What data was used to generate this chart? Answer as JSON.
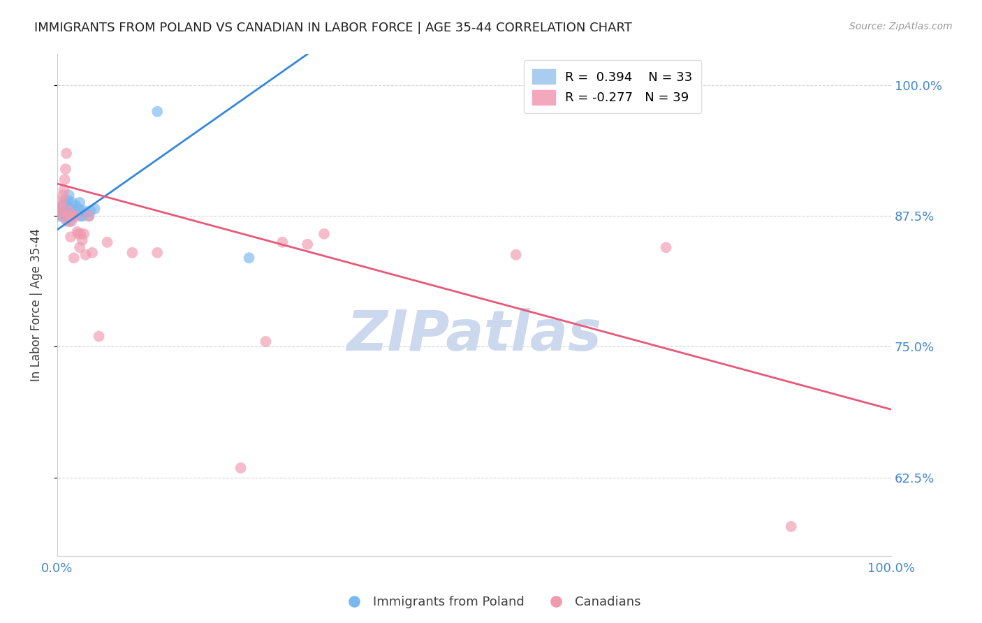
{
  "title": "IMMIGRANTS FROM POLAND VS CANADIAN IN LABOR FORCE | AGE 35-44 CORRELATION CHART",
  "source": "Source: ZipAtlas.com",
  "ylabel": "In Labor Force | Age 35-44",
  "xlim": [
    0.0,
    1.0
  ],
  "ylim": [
    0.55,
    1.03
  ],
  "yticks": [
    0.625,
    0.75,
    0.875,
    1.0
  ],
  "ytick_labels": [
    "62.5%",
    "75.0%",
    "87.5%",
    "100.0%"
  ],
  "xticks": [
    0.0,
    0.1,
    0.2,
    0.3,
    0.4,
    0.5,
    0.6,
    0.7,
    0.8,
    0.9,
    1.0
  ],
  "blue_R": 0.394,
  "blue_N": 33,
  "pink_R": -0.277,
  "pink_N": 39,
  "blue_color": "#7ab8f0",
  "pink_color": "#f09aaf",
  "line_blue_color": "#3388dd",
  "line_pink_color": "#e85878",
  "title_color": "#202020",
  "axis_color": "#4488cc",
  "blue_points_x": [
    0.003,
    0.004,
    0.005,
    0.005,
    0.006,
    0.007,
    0.008,
    0.008,
    0.009,
    0.01,
    0.011,
    0.012,
    0.013,
    0.014,
    0.015,
    0.016,
    0.017,
    0.018,
    0.02,
    0.021,
    0.022,
    0.025,
    0.026,
    0.027,
    0.028,
    0.03,
    0.032,
    0.035,
    0.038,
    0.04,
    0.045,
    0.12,
    0.23
  ],
  "blue_points_y": [
    0.875,
    0.878,
    0.88,
    0.883,
    0.876,
    0.879,
    0.882,
    0.886,
    0.889,
    0.872,
    0.875,
    0.885,
    0.89,
    0.895,
    0.87,
    0.875,
    0.882,
    0.888,
    0.875,
    0.88,
    0.885,
    0.878,
    0.882,
    0.888,
    0.875,
    0.875,
    0.88,
    0.878,
    0.875,
    0.88,
    0.882,
    0.975,
    0.835
  ],
  "pink_points_x": [
    0.003,
    0.004,
    0.005,
    0.006,
    0.007,
    0.008,
    0.009,
    0.01,
    0.011,
    0.012,
    0.013,
    0.014,
    0.015,
    0.016,
    0.017,
    0.018,
    0.02,
    0.022,
    0.024,
    0.025,
    0.027,
    0.028,
    0.03,
    0.032,
    0.034,
    0.038,
    0.042,
    0.05,
    0.06,
    0.09,
    0.12,
    0.22,
    0.25,
    0.27,
    0.3,
    0.32,
    0.55,
    0.73,
    0.88
  ],
  "pink_points_y": [
    0.876,
    0.88,
    0.885,
    0.89,
    0.895,
    0.9,
    0.91,
    0.92,
    0.935,
    0.87,
    0.875,
    0.88,
    0.875,
    0.855,
    0.87,
    0.875,
    0.835,
    0.875,
    0.86,
    0.858,
    0.845,
    0.858,
    0.852,
    0.858,
    0.838,
    0.875,
    0.84,
    0.76,
    0.85,
    0.84,
    0.84,
    0.634,
    0.755,
    0.85,
    0.848,
    0.858,
    0.838,
    0.845,
    0.578
  ],
  "blue_line_x0": 0.0,
  "blue_line_y0": 0.862,
  "blue_line_x1": 0.3,
  "blue_line_y1": 1.03,
  "pink_line_x0": 0.0,
  "pink_line_y0": 0.906,
  "pink_line_x1": 1.0,
  "pink_line_y1": 0.69
}
